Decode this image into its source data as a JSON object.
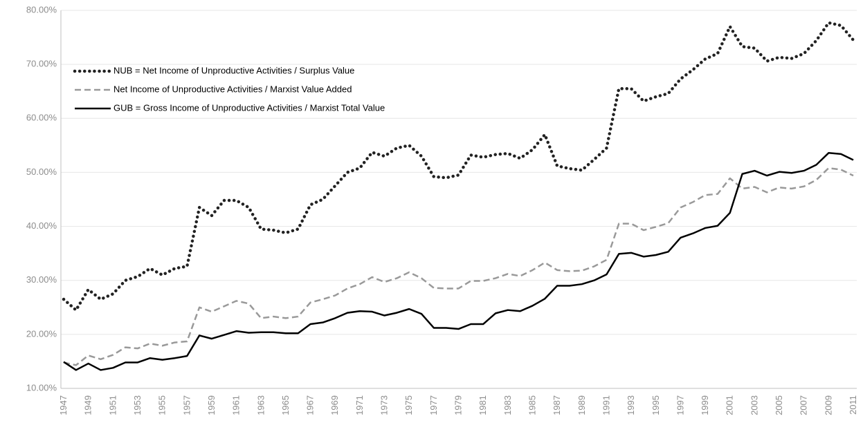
{
  "chart_data": {
    "type": "line",
    "categories": [
      "1947",
      null,
      "1949",
      null,
      "1951",
      null,
      "1953",
      null,
      "1955",
      null,
      "1957",
      null,
      "1959",
      null,
      "1961",
      null,
      "1963",
      null,
      "1965",
      null,
      "1967",
      null,
      "1969",
      null,
      "1971",
      null,
      "1973",
      null,
      "1975",
      null,
      "1977",
      null,
      "1979",
      null,
      "1981",
      null,
      "1983",
      null,
      "1985",
      null,
      "1987",
      null,
      "1989",
      null,
      "1991",
      null,
      "1993",
      null,
      "1995",
      null,
      "1997",
      null,
      "1999",
      null,
      "2001",
      null,
      "2003",
      null,
      "2005",
      null,
      "2007",
      null,
      "2009",
      null,
      "2011"
    ],
    "series": [
      {
        "name": "NUB = Net Income of Unproductive Activities / Surplus Value",
        "color": "#222222",
        "dash": "dotted",
        "values": [
          26.5,
          24.5,
          28.3,
          26.5,
          27.5,
          30,
          30.7,
          32.2,
          31,
          32.2,
          32.6,
          43.5,
          42,
          44.8,
          44.8,
          43.5,
          39.5,
          39.3,
          38.8,
          39.5,
          44,
          45,
          47.5,
          50,
          50.8,
          53.7,
          53,
          54.5,
          55,
          53,
          49.2,
          49,
          49.5,
          53.2,
          52.8,
          53.3,
          53.5,
          52.6,
          54.2,
          57,
          51.2,
          50.7,
          50.4,
          52.4,
          54.5,
          65.5,
          65.5,
          63.2,
          64,
          64.6,
          67.3,
          69,
          71,
          72,
          77,
          73.3,
          73,
          70.6,
          71.3,
          71.1,
          72,
          74.4,
          77.7,
          77.2,
          74.5
        ]
      },
      {
        "name": "Net Income of Unproductive Activities / Marxist Value Added",
        "color": "#999999",
        "dash": "dashed",
        "values": [
          14.8,
          14.3,
          16.1,
          15.4,
          16.2,
          17.6,
          17.4,
          18.3,
          17.9,
          18.5,
          18.7,
          25,
          24.2,
          25.2,
          26.2,
          25.7,
          23,
          23.3,
          23,
          23.3,
          25.9,
          26.5,
          27.2,
          28.5,
          29.3,
          30.6,
          29.7,
          30.4,
          31.5,
          30.4,
          28.6,
          28.5,
          28.5,
          29.9,
          29.9,
          30.4,
          31.2,
          30.8,
          31.9,
          33.3,
          31.9,
          31.7,
          31.8,
          32.6,
          33.8,
          40.5,
          40.5,
          39.3,
          39.9,
          40.6,
          43.5,
          44.5,
          45.8,
          46,
          48.9,
          47,
          47.3,
          46.3,
          47.2,
          47,
          47.4,
          48.6,
          50.8,
          50.5,
          49.4
        ]
      },
      {
        "name": "GUB = Gross Income of Unproductive Activities / Marxist Total Value",
        "color": "#000000",
        "dash": "solid",
        "values": [
          14.9,
          13.4,
          14.6,
          13.4,
          13.8,
          14.8,
          14.8,
          15.6,
          15.3,
          15.6,
          16,
          19.8,
          19.2,
          19.9,
          20.6,
          20.3,
          20.4,
          20.4,
          20.2,
          20.2,
          21.9,
          22.2,
          23,
          24,
          24.3,
          24.2,
          23.5,
          24,
          24.7,
          23.8,
          21.2,
          21.2,
          21,
          21.9,
          21.9,
          23.9,
          24.5,
          24.3,
          25.3,
          26.6,
          29,
          29,
          29.3,
          30,
          31.1,
          34.9,
          35.1,
          34.4,
          34.7,
          35.3,
          37.9,
          38.7,
          39.7,
          40.1,
          42.5,
          49.7,
          50.3,
          49.4,
          50.1,
          49.9,
          50.3,
          51.4,
          53.6,
          53.4,
          52.3
        ]
      }
    ],
    "ylim": [
      10,
      80
    ],
    "yticks": [
      {
        "value": 10,
        "label": "10.00%"
      },
      {
        "value": 20,
        "label": "20.00%"
      },
      {
        "value": 30,
        "label": "30.00%"
      },
      {
        "value": 40,
        "label": "40.00%"
      },
      {
        "value": 50,
        "label": "50.00%"
      },
      {
        "value": 60,
        "label": "60.00%"
      },
      {
        "value": 70,
        "label": "70.00%"
      },
      {
        "value": 80,
        "label": "80.00%"
      }
    ],
    "grid": true,
    "legend": "top-left"
  }
}
